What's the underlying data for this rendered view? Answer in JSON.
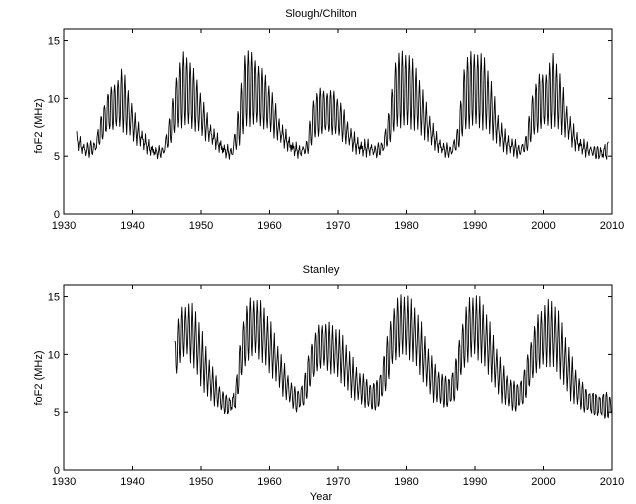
{
  "chart_data": [
    {
      "type": "line",
      "title": "Slough/Chilton",
      "xlabel": "",
      "ylabel": "foF2 (MHz)",
      "xlim": [
        1930,
        2010
      ],
      "ylim": [
        0,
        16
      ],
      "xticks": [
        1930,
        1940,
        1950,
        1960,
        1970,
        1980,
        1990,
        2000,
        2010
      ],
      "yticks": [
        0,
        5,
        10,
        15
      ],
      "grid": false,
      "data_start": 1931.9,
      "series": [
        {
          "color": "#000000",
          "x": [
            1931.9,
            1933,
            1934.5,
            1935.5,
            1936.5,
            1937.5,
            1938.5,
            1939.5,
            1940.5,
            1941.5,
            1942.5,
            1943.5,
            1944.5,
            1945.5,
            1946.5,
            1947.5,
            1948.5,
            1949.5,
            1950.5,
            1951.5,
            1952.5,
            1953.5,
            1954.5,
            1955.5,
            1956.5,
            1957.5,
            1958.5,
            1959.5,
            1960.5,
            1961.5,
            1962.5,
            1963.5,
            1964.5,
            1965.5,
            1966.5,
            1967.5,
            1968.5,
            1969.5,
            1970.5,
            1971.5,
            1972.5,
            1973.5,
            1974.5,
            1975.5,
            1976.5,
            1977.5,
            1978.5,
            1979.5,
            1980.5,
            1981.5,
            1982.5,
            1983.5,
            1984.5,
            1985.5,
            1986.5,
            1987.5,
            1988.5,
            1989.5,
            1990.5,
            1991.5,
            1992.5,
            1993.5,
            1994.5,
            1995.5,
            1996.5,
            1997.5,
            1998.5,
            1999.5,
            2000.5,
            2001.5,
            2002.5,
            2003.5,
            2004.5,
            2005.5,
            2006.5,
            2007.5,
            2008.5,
            2009.5
          ],
          "min": [
            6.0,
            5.0,
            5.2,
            6.3,
            7.0,
            7.4,
            7.2,
            6.8,
            6.3,
            5.8,
            5.3,
            5.0,
            5.0,
            6.0,
            7.1,
            7.5,
            7.4,
            7.1,
            6.7,
            6.2,
            5.7,
            5.1,
            4.9,
            5.8,
            7.2,
            7.6,
            7.5,
            7.3,
            6.9,
            6.3,
            5.8,
            5.3,
            5.0,
            5.2,
            6.2,
            6.8,
            6.9,
            6.8,
            6.5,
            6.0,
            5.5,
            5.2,
            5.2,
            5.0,
            5.2,
            6.0,
            7.2,
            7.5,
            7.4,
            7.3,
            6.8,
            6.2,
            5.6,
            5.1,
            5.0,
            5.6,
            6.9,
            7.5,
            7.4,
            7.3,
            6.8,
            6.0,
            5.5,
            5.2,
            5.0,
            5.4,
            6.4,
            7.2,
            7.5,
            7.4,
            7.2,
            6.6,
            5.8,
            5.4,
            5.1,
            4.9,
            4.8,
            4.8
          ],
          "max": [
            6.8,
            6.0,
            6.3,
            8.7,
            11.0,
            11.3,
            12.8,
            10.5,
            8.2,
            7.0,
            6.0,
            5.6,
            5.8,
            8.5,
            12.6,
            14.3,
            13.2,
            11.5,
            9.2,
            7.5,
            6.5,
            5.8,
            5.6,
            9.2,
            14.6,
            14.0,
            13.0,
            12.0,
            10.2,
            8.0,
            6.8,
            6.0,
            5.7,
            6.3,
            10.5,
            11.0,
            10.8,
            10.7,
            9.5,
            7.8,
            6.6,
            6.1,
            6.2,
            5.8,
            6.3,
            9.0,
            14.0,
            14.2,
            13.8,
            12.5,
            10.2,
            8.2,
            6.6,
            6.0,
            5.8,
            7.5,
            13.5,
            14.2,
            14.0,
            13.5,
            11.0,
            8.2,
            6.8,
            6.4,
            5.8,
            6.8,
            11.0,
            12.3,
            12.4,
            14.1,
            11.8,
            9.0,
            7.2,
            6.3,
            6.0,
            5.8,
            5.7,
            6.3
          ]
        }
      ]
    },
    {
      "type": "line",
      "title": "Stanley",
      "xlabel": "Year",
      "ylabel": "foF2 (MHz)",
      "xlim": [
        1930,
        2010
      ],
      "ylim": [
        0,
        16
      ],
      "xticks": [
        1930,
        1940,
        1950,
        1960,
        1970,
        1980,
        1990,
        2000,
        2010
      ],
      "yticks": [
        0,
        5,
        10,
        15
      ],
      "grid": false,
      "data_start": 1946.2,
      "series": [
        {
          "color": "#000000",
          "x": [
            1946.2,
            1947.0,
            1948.0,
            1949.0,
            1950.0,
            1951.0,
            1952.0,
            1953.0,
            1954.0,
            1955.0,
            1956.0,
            1957.0,
            1958.0,
            1959.0,
            1960.0,
            1961.0,
            1962.0,
            1963.0,
            1964.0,
            1965.0,
            1966.0,
            1967.0,
            1968.0,
            1969.0,
            1970.0,
            1971.0,
            1972.0,
            1973.0,
            1974.0,
            1975.0,
            1976.0,
            1977.0,
            1978.0,
            1979.0,
            1980.0,
            1981.0,
            1982.0,
            1983.0,
            1984.0,
            1985.0,
            1986.0,
            1987.0,
            1988.0,
            1989.0,
            1990.0,
            1991.0,
            1992.0,
            1993.0,
            1994.0,
            1995.0,
            1996.0,
            1997.0,
            1998.0,
            1999.0,
            2000.0,
            2001.0,
            2002.0,
            2003.0,
            2004.0,
            2005.0,
            2006.0,
            2007.0,
            2008.0,
            2009.0,
            2009.9
          ],
          "min": [
            7.6,
            9.5,
            10.0,
            9.0,
            7.5,
            6.4,
            5.8,
            5.0,
            4.8,
            5.3,
            8.0,
            9.6,
            10.0,
            9.5,
            8.6,
            7.8,
            6.6,
            5.7,
            5.0,
            5.4,
            7.0,
            8.6,
            8.8,
            8.5,
            8.2,
            7.4,
            6.5,
            6.0,
            5.5,
            5.0,
            5.3,
            6.8,
            9.0,
            10.0,
            10.0,
            9.6,
            8.5,
            7.2,
            6.0,
            5.5,
            5.3,
            5.8,
            8.0,
            9.5,
            10.0,
            9.5,
            8.5,
            7.2,
            6.0,
            5.3,
            5.0,
            5.5,
            7.0,
            8.5,
            9.0,
            9.2,
            8.7,
            7.5,
            6.2,
            5.5,
            5.0,
            4.8,
            4.6,
            4.4,
            4.5
          ],
          "max": [
            11.5,
            14.0,
            14.3,
            14.0,
            12.0,
            9.8,
            8.2,
            7.0,
            6.2,
            6.8,
            12.8,
            14.9,
            14.8,
            14.2,
            12.8,
            11.0,
            9.2,
            7.8,
            6.8,
            7.8,
            11.0,
            12.5,
            12.8,
            12.5,
            12.0,
            11.0,
            9.6,
            8.5,
            8.0,
            7.5,
            8.0,
            11.0,
            14.0,
            15.1,
            15.0,
            14.2,
            12.8,
            10.8,
            9.2,
            8.5,
            8.0,
            9.0,
            12.5,
            14.8,
            15.1,
            14.5,
            12.8,
            10.8,
            9.0,
            8.0,
            7.5,
            8.2,
            11.0,
            13.2,
            14.2,
            14.6,
            13.8,
            11.8,
            9.8,
            8.2,
            7.2,
            6.8,
            6.5,
            6.8,
            6.4
          ]
        }
      ]
    }
  ]
}
